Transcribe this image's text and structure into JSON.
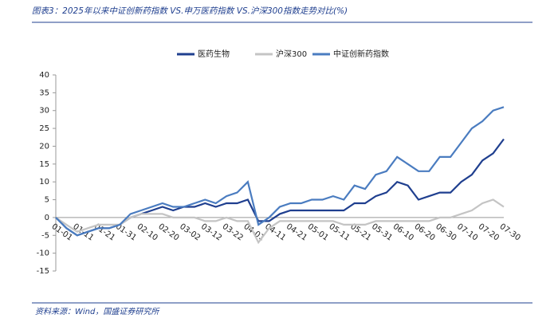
{
  "chart_data": {
    "type": "line",
    "title": "图表3：2025年以来中证创新药指数 VS.申万医药指数 VS.沪深300指数走势对比(%)",
    "source": "资料来源：Wind，国盛证券研究所",
    "categories": [
      "01-01",
      null,
      "01-11",
      null,
      "01-21",
      null,
      "01-31",
      null,
      "02-10",
      null,
      "02-20",
      null,
      "03-02",
      null,
      "03-12",
      null,
      "03-22",
      null,
      "04-01",
      null,
      "04-11",
      null,
      "04-21",
      null,
      "05-01",
      null,
      "05-11",
      null,
      "05-21",
      null,
      "05-31",
      null,
      "06-10",
      null,
      "06-20",
      null,
      "06-30",
      null,
      "07-10",
      null,
      "07-20",
      null,
      "07-30"
    ],
    "series": [
      {
        "name": "医药生物",
        "color": "#1f3f8f",
        "values": [
          0,
          -3,
          -5,
          -4,
          -3,
          -3,
          -2,
          0,
          1,
          2,
          3,
          2,
          3,
          3,
          4,
          3,
          4,
          4,
          5,
          -1,
          -1,
          1,
          2,
          2,
          2,
          2,
          2,
          2,
          4,
          4,
          6,
          7,
          10,
          9,
          5,
          6,
          7,
          7,
          10,
          12,
          16,
          18,
          22
        ]
      },
      {
        "name": "沪深300",
        "color": "#c4c4c4",
        "values": [
          0,
          -2,
          -4,
          -3,
          -2,
          -2,
          -2,
          0,
          1,
          1,
          1,
          0,
          0,
          0,
          -1,
          -1,
          0,
          -1,
          -1,
          -7,
          -3,
          -1,
          -1,
          -1,
          -1,
          -1,
          -1,
          -2,
          -2,
          -2,
          -1,
          -1,
          -1,
          -1,
          -1,
          -1,
          0,
          0,
          1,
          2,
          4,
          5,
          3
        ]
      },
      {
        "name": "中证创新药指数",
        "color": "#4a7cc0",
        "values": [
          0,
          -3,
          -5,
          -4,
          -3,
          -3,
          -2,
          1,
          2,
          3,
          4,
          3,
          3,
          4,
          5,
          4,
          6,
          7,
          10,
          -2,
          0,
          3,
          4,
          4,
          5,
          5,
          6,
          5,
          9,
          8,
          12,
          13,
          17,
          15,
          13,
          13,
          17,
          17,
          21,
          25,
          27,
          30,
          31
        ]
      }
    ],
    "ylim": [
      -15,
      40
    ],
    "yticks": [
      -15,
      -10,
      -5,
      0,
      5,
      10,
      15,
      20,
      25,
      30,
      35,
      40
    ]
  }
}
